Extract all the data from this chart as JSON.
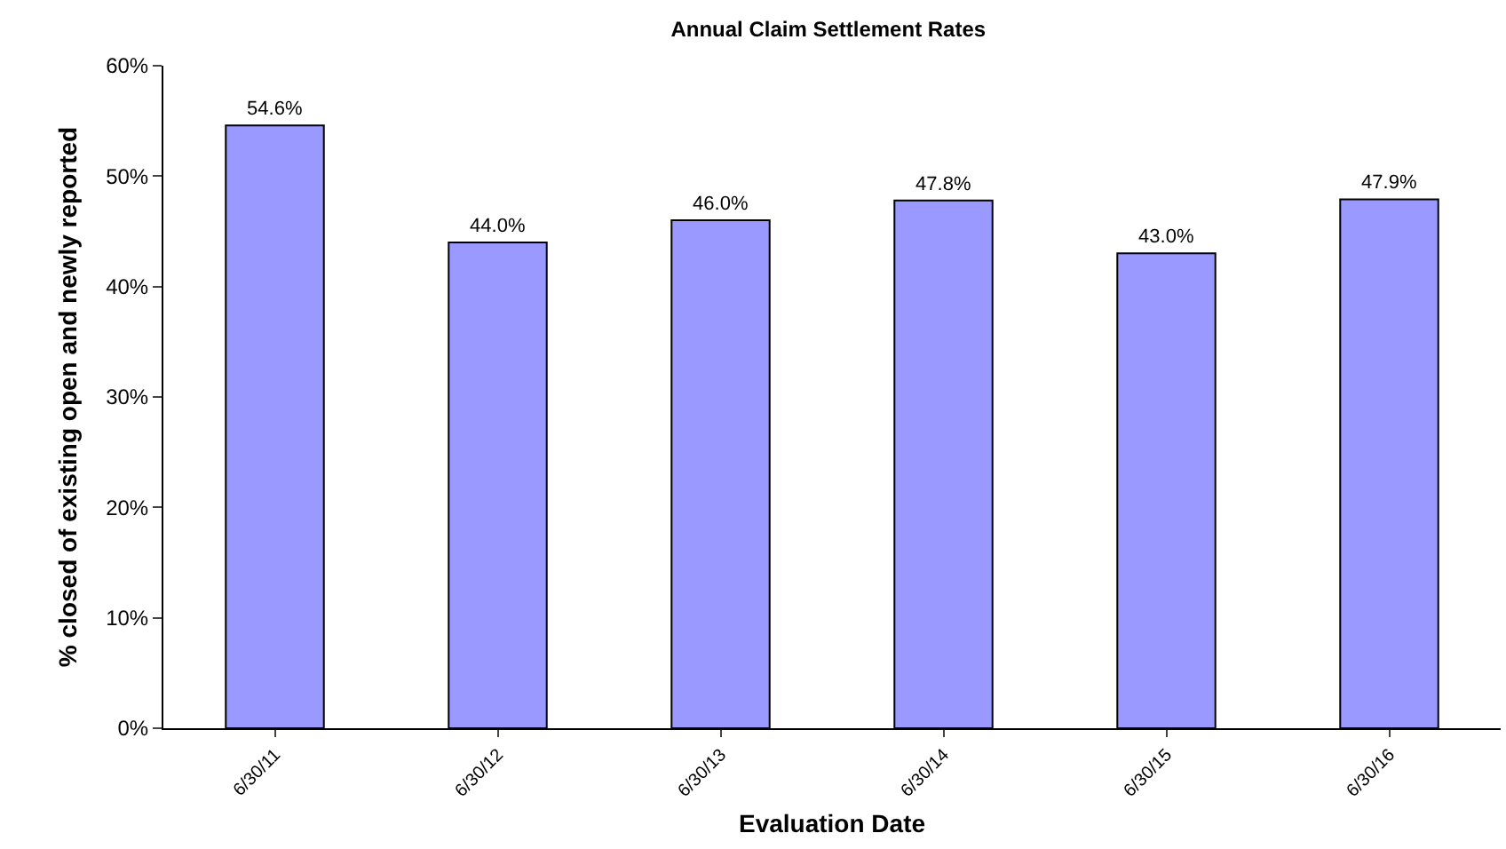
{
  "chart_data": {
    "type": "bar",
    "title": "Annual Claim Settlement Rates",
    "xlabel": "Evaluation Date",
    "ylabel": "% closed of existing open and newly reported",
    "categories": [
      "6/30/11",
      "6/30/12",
      "6/30/13",
      "6/30/14",
      "6/30/15",
      "6/30/16"
    ],
    "values": [
      54.6,
      44.0,
      46.0,
      47.8,
      43.0,
      47.9
    ],
    "value_labels": [
      "54.6%",
      "44.0%",
      "46.0%",
      "47.8%",
      "43.0%",
      "47.9%"
    ],
    "color": "#9999ff",
    "ylim": [
      0,
      60
    ],
    "yticks": [
      {
        "value": 0,
        "label": "0%"
      },
      {
        "value": 10,
        "label": "10%"
      },
      {
        "value": 20,
        "label": "20%"
      },
      {
        "value": 30,
        "label": "30%"
      },
      {
        "value": 40,
        "label": "40%"
      },
      {
        "value": 50,
        "label": "50%"
      },
      {
        "value": 60,
        "label": "60%"
      }
    ],
    "grid": false,
    "legend": false
  }
}
